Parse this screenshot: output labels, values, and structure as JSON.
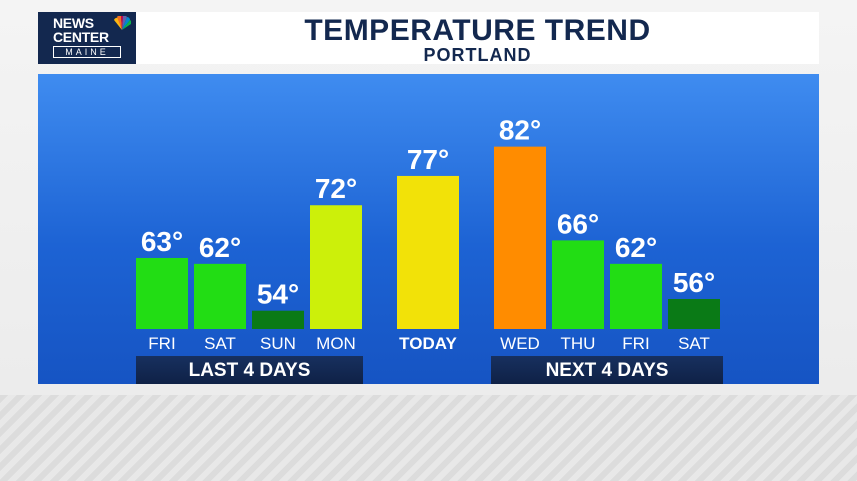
{
  "header": {
    "logo": {
      "line1": "NEWS",
      "line2": "CENTER",
      "line3": "MAINE"
    },
    "title": "TEMPERATURE TREND",
    "subtitle": "PORTLAND"
  },
  "groups": {
    "last_label": "LAST 4 DAYS",
    "next_label": "NEXT 4 DAYS"
  },
  "chart_data": {
    "type": "bar",
    "title": "TEMPERATURE TREND",
    "subtitle": "PORTLAND",
    "categories": [
      "FRI",
      "SAT",
      "SUN",
      "MON",
      "TODAY",
      "WED",
      "THU",
      "FRI",
      "SAT"
    ],
    "values": [
      63,
      62,
      54,
      72,
      77,
      82,
      66,
      62,
      56
    ],
    "value_labels": [
      "63°",
      "62°",
      "54°",
      "72°",
      "77°",
      "82°",
      "66°",
      "62°",
      "56°"
    ],
    "bar_colors": [
      "#22dd14",
      "#22dd14",
      "#0a7a16",
      "#ccf00a",
      "#f2e208",
      "#ff8c00",
      "#22dd14",
      "#22dd14",
      "#0a7a16"
    ],
    "groups": [
      {
        "label": "LAST 4 DAYS",
        "categories": [
          "FRI",
          "SAT",
          "SUN",
          "MON"
        ]
      },
      {
        "label": "NEXT 4 DAYS",
        "categories": [
          "WED",
          "THU",
          "FRI",
          "SAT"
        ]
      }
    ],
    "grid": false,
    "legend": "none"
  }
}
